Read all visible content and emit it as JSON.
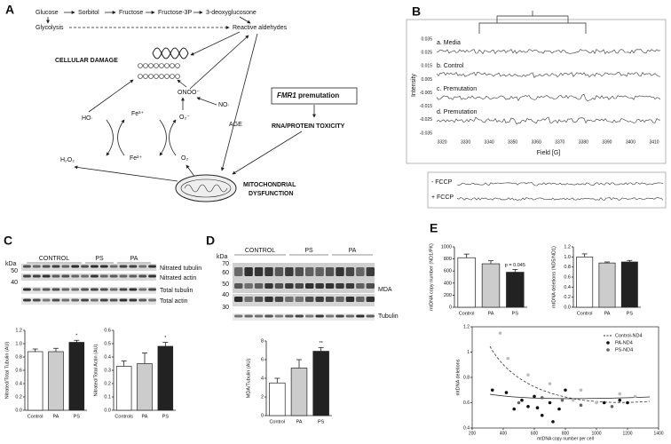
{
  "panel_letters": [
    "A",
    "B",
    "C",
    "D",
    "E"
  ],
  "diagram": {
    "pathway": [
      "Glucose",
      "Sorbitol",
      "Fructose",
      "Fructose-3P",
      "3-deoxyglucosone"
    ],
    "glycolysis": "Glycolysis",
    "reactive_aldehydes": "Reactive aldehydes",
    "cellular_damage": "CELLULAR DAMAGE",
    "onoo": "ONOO⁻",
    "no": "NO·",
    "age": "AGE",
    "ho": "HO·",
    "fe3": "Fe³⁺",
    "o2_radical": "O₂⁻",
    "fe2": "Fe²⁺",
    "o2": "O₂",
    "h2o2": "H₂O₂",
    "fmr1": {
      "gene": "FMR1",
      "text": "premutation"
    },
    "rna_toxicity": "RNA/PROTEIN TOXICITY",
    "mito": [
      "MITOCHONDRIAL",
      "DYSFUNCTION"
    ]
  },
  "epr": {
    "traces": [
      "a. Media",
      "b. Control",
      "c. Premutation",
      "d. Premutation"
    ],
    "ylabel": "Intensity",
    "xlabel": "Field [G]",
    "yticks": [
      0.035,
      0.025,
      0.015,
      0.005,
      -0.005,
      -0.015,
      -0.025,
      -0.035
    ],
    "xticks": [
      3320,
      3330,
      3340,
      3350,
      3360,
      3370,
      3380,
      3390,
      3400,
      3410
    ],
    "fccp": [
      "- FCCP",
      "+ FCCP"
    ]
  },
  "blots": {
    "c": {
      "kda": "kDa",
      "markers": [
        "50",
        "40"
      ],
      "groups": [
        "CONTROL",
        "PS",
        "PA"
      ],
      "bands": [
        "Nitrated tubulin",
        "Nitrated actin",
        "Total tubulin",
        "Total actin"
      ]
    },
    "d": {
      "kda": "kDa",
      "markers": [
        "70",
        "60",
        "50",
        "40",
        "30"
      ],
      "groups": [
        "CONTROL",
        "PS",
        "PA"
      ],
      "bands": [
        "MDA",
        "Tubulin"
      ]
    }
  },
  "chart_data": [
    {
      "type": "bar",
      "ylabel": "Nitrated/Total Tubulin (AU)",
      "categories": [
        "Control",
        "PA",
        "PS"
      ],
      "values": [
        0.88,
        0.88,
        1.02
      ],
      "errors": [
        0.04,
        0.05,
        0.03
      ],
      "colors": [
        "#ffffff",
        "#cccccc",
        "#222222"
      ],
      "ylim": [
        0,
        1.2
      ],
      "yticks": [
        {
          "value": 0,
          "label": "0.0"
        },
        0.2,
        0.4,
        0.6,
        0.8,
        {
          "value": 1,
          "label": "1.0"
        },
        1.2
      ],
      "significance": [
        null,
        null,
        "*"
      ]
    },
    {
      "type": "bar",
      "ylabel": "Nitrated/Total Actin (AU)",
      "categories": [
        "Controls",
        "PA",
        "PS"
      ],
      "values": [
        0.33,
        0.35,
        0.48
      ],
      "errors": [
        0.04,
        0.08,
        0.03
      ],
      "colors": [
        "#ffffff",
        "#cccccc",
        "#222222"
      ],
      "ylim": [
        0,
        0.6
      ],
      "yticks": [
        {
          "value": 0,
          "label": "0.0"
        },
        0.1,
        0.2,
        0.3,
        0.4,
        0.5,
        0.6
      ],
      "significance": [
        null,
        null,
        "*"
      ]
    },
    {
      "type": "bar",
      "ylabel": "MDA/Tubulin (AU)",
      "categories": [
        "Control",
        "PA",
        "PS"
      ],
      "values": [
        3.5,
        5.1,
        6.9
      ],
      "errors": [
        0.5,
        0.9,
        0.4
      ],
      "colors": [
        "#ffffff",
        "#cccccc",
        "#222222"
      ],
      "ylim": [
        0,
        8
      ],
      "yticks": [
        0,
        2,
        4,
        6,
        8
      ],
      "significance": [
        null,
        null,
        "**"
      ]
    },
    {
      "type": "bar",
      "ylabel": "mtDNA copy number (ND1/PK)",
      "categories": [
        "Control",
        "PA",
        "PS"
      ],
      "values": [
        820,
        720,
        580
      ],
      "errors": [
        60,
        50,
        45
      ],
      "colors": [
        "#ffffff",
        "#cccccc",
        "#222222"
      ],
      "ylim": [
        0,
        1000
      ],
      "yticks": [
        0,
        200,
        400,
        600,
        800,
        1000
      ],
      "significance": [
        null,
        null,
        "p = 0.045"
      ]
    },
    {
      "type": "bar",
      "ylabel": "mtDNA deletions (ND5/ND1)",
      "categories": [
        "Control",
        "PA",
        "PS"
      ],
      "values": [
        1.0,
        0.88,
        0.9
      ],
      "errors": [
        0.06,
        0.02,
        0.03
      ],
      "colors": [
        "#ffffff",
        "#cccccc",
        "#222222"
      ],
      "ylim": [
        0,
        1.2
      ],
      "yticks": [
        {
          "value": 0,
          "label": "0.0"
        },
        0.2,
        0.4,
        0.6,
        0.8,
        {
          "value": 1,
          "label": "1.0"
        },
        1.2
      ]
    },
    {
      "type": "scatter",
      "xlabel": "mtDNA copy number per cell",
      "ylabel": "mtDNA deletions",
      "xlim": [
        200,
        1400
      ],
      "xticks": [
        200,
        400,
        600,
        800,
        1000,
        1200,
        1400
      ],
      "ylim": [
        0.4,
        1.2
      ],
      "yticks": [
        0.4,
        0.6,
        0.8,
        1,
        1.2
      ],
      "series": [
        {
          "name": "Control-ND4",
          "color": "#bbbbbb",
          "x": [
            380,
            430,
            560,
            700,
            850,
            900,
            1000,
            1150,
            1250
          ],
          "y": [
            1.15,
            0.95,
            0.82,
            0.75,
            0.62,
            0.7,
            0.6,
            0.67,
            0.65
          ]
        },
        {
          "name": "PA-ND4",
          "color": "#111111",
          "x": [
            330,
            420,
            470,
            520,
            560,
            600,
            620,
            650,
            700,
            720,
            760,
            800,
            1050,
            1150,
            1200
          ],
          "y": [
            0.7,
            0.68,
            0.55,
            0.62,
            0.57,
            0.65,
            0.56,
            0.5,
            0.6,
            0.45,
            0.55,
            0.7,
            0.6,
            0.62,
            0.6
          ]
        },
        {
          "name": "PS-ND4",
          "color": "#666666",
          "x": [
            500,
            650,
            780,
            900,
            1100
          ],
          "y": [
            0.6,
            0.64,
            0.62,
            0.58,
            0.57
          ]
        }
      ]
    }
  ]
}
